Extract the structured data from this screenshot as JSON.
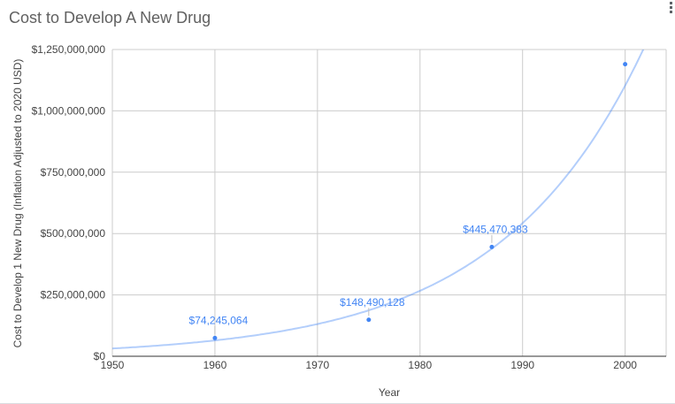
{
  "chart_data": {
    "type": "scatter",
    "title": "Cost to Develop A New Drug",
    "xlabel": "Year",
    "ylabel": "Cost to Develop 1 New Drug (Inflation Adjusted to 2020 USD)",
    "x": [
      1960,
      1975,
      1987,
      2000
    ],
    "y": [
      74245064,
      148490128,
      445470383,
      1190000000
    ],
    "point_labels": [
      "$74,245,064",
      "$148,490,128",
      "$445,470,383",
      ""
    ],
    "xlim": [
      1950,
      2004
    ],
    "ylim": [
      0,
      1250000000
    ],
    "x_ticks": [
      1950,
      1960,
      1970,
      1980,
      1990,
      2000
    ],
    "x_tick_labels": [
      "1950",
      "1960",
      "1970",
      "1980",
      "1990",
      "2000"
    ],
    "y_ticks": [
      0,
      250000000,
      500000000,
      750000000,
      1000000000,
      1250000000
    ],
    "y_tick_labels": [
      "$0",
      "$250,000,000",
      "$500,000,000",
      "$750,000,000",
      "$1,000,000,000",
      "$1,250,000,000"
    ],
    "grid": true,
    "legend": "none",
    "trendline": "exponential"
  },
  "colors": {
    "series": "#4285f4",
    "trend": "rgba(66,133,244,0.4)",
    "gridline": "#cccccc",
    "axis_line": "#333333",
    "tick_label": "#444444",
    "leader_line": "#c0c0c0",
    "title": "#616161"
  },
  "icons": {
    "menu": "kebab-menu-icon"
  }
}
